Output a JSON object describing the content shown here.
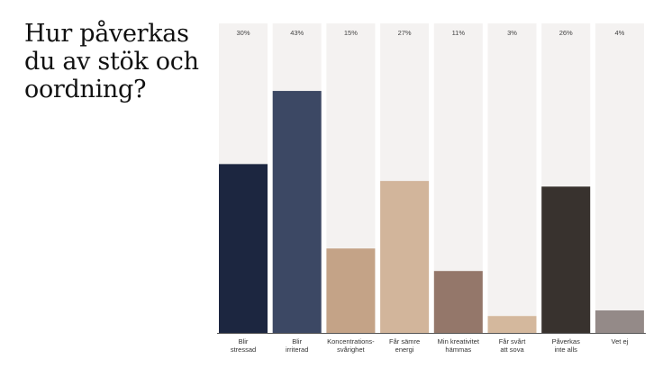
{
  "title": "Hur påverkas du av stök och oordning?",
  "chart_data": {
    "type": "bar",
    "title": "Hur påverkas du av stök och oordning?",
    "xlabel": "",
    "ylabel": "",
    "ylim": [
      0,
      55
    ],
    "grid": false,
    "legend": "none",
    "categories": [
      [
        "Blir",
        "stressad"
      ],
      [
        "Blir",
        "irriterad"
      ],
      [
        "Koncentrations-",
        "svårighet"
      ],
      [
        "Får sämre",
        "energi"
      ],
      [
        "Min kreativitet",
        "hämmas"
      ],
      [
        "Får svårt",
        "att sova"
      ],
      [
        "Påverkas",
        "inte alls"
      ],
      [
        "Vet ej"
      ]
    ],
    "values": [
      30,
      43,
      15,
      27,
      11,
      3,
      26,
      4
    ],
    "value_labels": [
      "30%",
      "43%",
      "15%",
      "27%",
      "11%",
      "3%",
      "26%",
      "4%"
    ],
    "colors": [
      "#1c2640",
      "#3c4864",
      "#c4a387",
      "#d2b59b",
      "#94776a",
      "#d4b89d",
      "#38322e",
      "#948a88"
    ],
    "track_color": "#f4f2f1",
    "axis_color": "#555555"
  }
}
